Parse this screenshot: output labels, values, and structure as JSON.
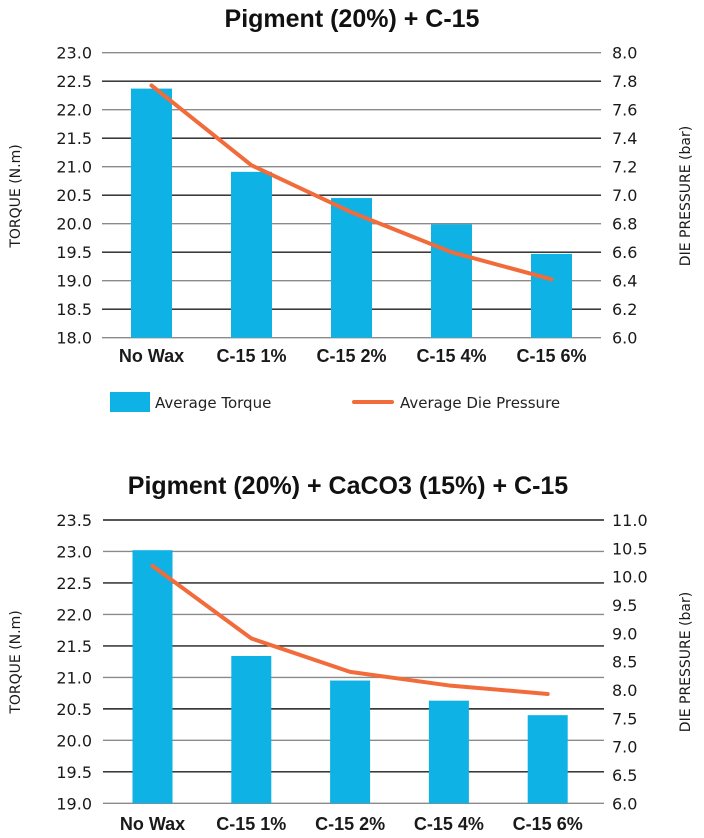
{
  "colors": {
    "bar": "#0EB2E4",
    "line": "#F26B3A",
    "grid_light": "#8a8a8a",
    "grid_dark": "#1e1e1e"
  },
  "legend": {
    "bar_label": "Average Torque",
    "line_label": "Average Die Pressure"
  },
  "chart_data": [
    {
      "type": "bar",
      "title": "Pigment (20%) + C-15",
      "categories": [
        "No Wax",
        "C-15 1%",
        "C-15 2%",
        "C-15 4%",
        "C-15 6%"
      ],
      "ylabel": "TORQUE (N.m)",
      "y2label": "DIE PRESSURE (bar)",
      "ylim": [
        18.0,
        23.0
      ],
      "y2lim": [
        6.0,
        8.0
      ],
      "yticks": [
        "18.0",
        "18.5",
        "19.0",
        "19.5",
        "20.0",
        "20.5",
        "21.0",
        "21.5",
        "22.0",
        "22.5",
        "23.0"
      ],
      "y2ticks": [
        "6.0",
        "6.2",
        "6.4",
        "6.6",
        "6.8",
        "7.0",
        "7.2",
        "7.4",
        "7.6",
        "7.8",
        "8.0"
      ],
      "grid": true,
      "legend_position": "bottom",
      "series": [
        {
          "name": "Average Torque",
          "type": "bar",
          "axis": "left",
          "values": [
            22.37,
            20.91,
            20.45,
            19.99,
            19.47
          ]
        },
        {
          "name": "Average Die Pressure",
          "type": "line",
          "axis": "right",
          "values": [
            7.77,
            7.21,
            6.88,
            6.6,
            6.41
          ]
        }
      ]
    },
    {
      "type": "bar",
      "title": "Pigment (20%) + CaCO3 (15%) + C-15",
      "categories": [
        "No Wax",
        "C-15 1%",
        "C-15 2%",
        "C-15 4%",
        "C-15 6%"
      ],
      "ylabel": "TORQUE (N.m)",
      "y2label": "DIE PRESSURE (bar)",
      "ylim": [
        19.0,
        23.5
      ],
      "y2lim": [
        6.0,
        11.0
      ],
      "yticks": [
        "19.0",
        "19.5",
        "20.0",
        "20.5",
        "21.0",
        "21.5",
        "22.0",
        "22.5",
        "23.0",
        "23.5"
      ],
      "y2ticks": [
        "6.0",
        "6.5",
        "7.0",
        "7.5",
        "8.0",
        "8.5",
        "9.0",
        "9.5",
        "10.0",
        "10.5",
        "11.0"
      ],
      "grid": true,
      "legend_position": "none",
      "series": [
        {
          "name": "Average Torque",
          "type": "bar",
          "axis": "left",
          "values": [
            23.02,
            21.34,
            20.95,
            20.63,
            20.4
          ]
        },
        {
          "name": "Average Die Pressure",
          "type": "line",
          "axis": "right",
          "values": [
            10.19,
            8.91,
            8.32,
            8.08,
            7.93
          ]
        }
      ]
    }
  ]
}
